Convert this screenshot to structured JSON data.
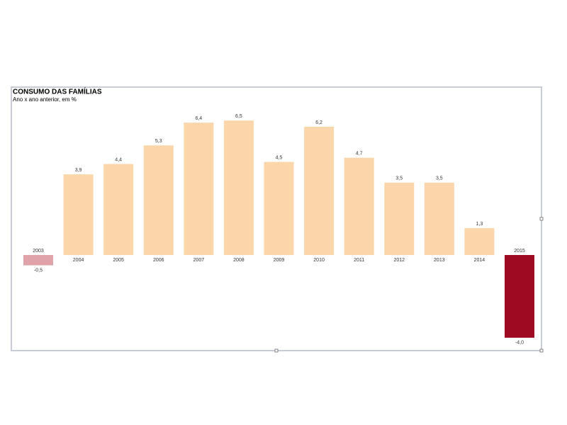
{
  "chart_data": {
    "type": "bar",
    "title": "CONSUMO DAS FAMÍLIAS",
    "subtitle": "Ano x ano anterior, em %",
    "categories": [
      "2003",
      "2004",
      "2005",
      "2006",
      "2007",
      "2008",
      "2009",
      "2010",
      "2011",
      "2012",
      "2013",
      "2014",
      "2015"
    ],
    "values": [
      -0.5,
      3.9,
      4.4,
      5.3,
      6.4,
      6.5,
      4.5,
      6.2,
      4.7,
      3.5,
      3.5,
      1.3,
      -4.0
    ],
    "value_labels": [
      "-0,5",
      "3,9",
      "4,4",
      "5,3",
      "6,4",
      "6,5",
      "4,5",
      "6,2",
      "4,7",
      "3,5",
      "3,5",
      "1,3",
      "-4,0"
    ],
    "colors": [
      "#e0a3a9",
      "#fbd6ab",
      "#fbd6ab",
      "#fbd6ab",
      "#fbd6ab",
      "#fbd6ab",
      "#fbd6ab",
      "#fbd6ab",
      "#fbd6ab",
      "#fbd6ab",
      "#fbd6ab",
      "#fbd6ab",
      "#9e0a22"
    ]
  }
}
